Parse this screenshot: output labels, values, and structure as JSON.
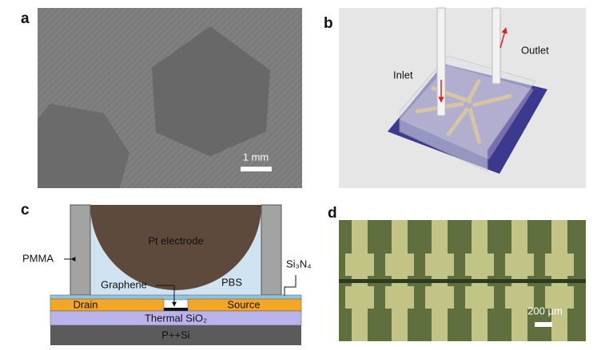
{
  "panels": {
    "a": {
      "label": "a",
      "scale_bar": "1 mm"
    },
    "b": {
      "label": "b",
      "inlet": "Inlet",
      "outlet": "Outlet"
    },
    "c": {
      "label": "c",
      "electrode": "Pt electrode",
      "solution": "PBS",
      "wall": "PMMA",
      "passivation": "Si₃N₄",
      "channel": "Graphene",
      "drain": "Drain",
      "source": "Source",
      "oxide": "Thermal SiO₂",
      "substrate": "P++Si"
    },
    "d": {
      "label": "d",
      "scale_bar": "200 µm"
    }
  }
}
